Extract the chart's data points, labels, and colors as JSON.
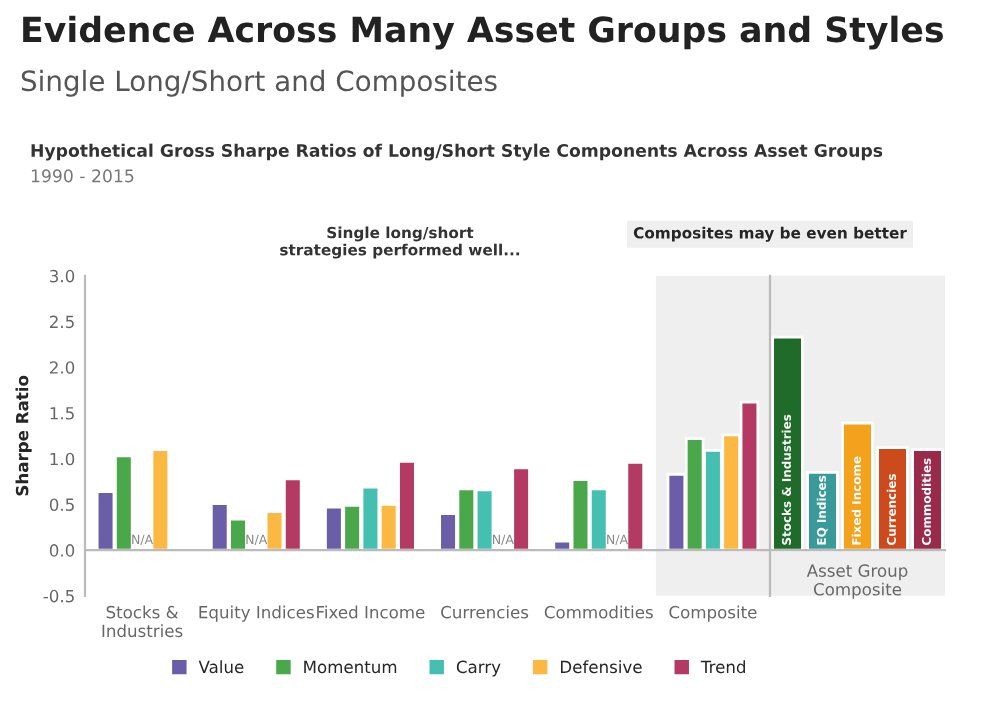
{
  "chart_data": [
    {
      "type": "bar",
      "title": "Evidence Across Many Asset Groups and Styles",
      "subtitle": "Single Long/Short and Composites",
      "ylabel": "Sharpe Ratio",
      "annotations": [
        "Hypothetical Gross Sharpe Ratios of Long/Short Style Components Across Asset Groups",
        "1990 - 2015",
        "Single long/short strategies performed well..."
      ],
      "categories": [
        "Stocks & Industries",
        "Equity Indices",
        "Fixed Income",
        "Currencies",
        "Commodities",
        "Composite"
      ],
      "series": [
        {
          "name": "Value",
          "color": "#6b5ea8",
          "values": [
            0.64,
            0.51,
            0.47,
            0.4,
            0.1,
            0.83
          ]
        },
        {
          "name": "Momentum",
          "color": "#4aa84a",
          "values": [
            1.03,
            0.34,
            0.49,
            0.67,
            0.77,
            1.22
          ]
        },
        {
          "name": "Carry",
          "color": "#45bfb0",
          "values": [
            null,
            null,
            0.69,
            0.66,
            0.67,
            1.09
          ],
          "value_labels": [
            "N/A",
            "N/A",
            null,
            null,
            null,
            null
          ]
        },
        {
          "name": "Defensive",
          "color": "#fbb843",
          "values": [
            1.1,
            0.42,
            0.5,
            null,
            null,
            1.26
          ],
          "value_labels": [
            null,
            null,
            null,
            "N/A",
            "N/A",
            null
          ]
        },
        {
          "name": "Trend",
          "color": "#b53a63",
          "values": [
            null,
            0.78,
            0.97,
            0.9,
            0.96,
            1.62
          ]
        }
      ],
      "ylim": [
        -0.5,
        3.0
      ],
      "yticks": [
        {
          "value": -0.5,
          "label": "-0.5"
        },
        {
          "value": 0,
          "label": "0.0"
        },
        {
          "value": 0.5,
          "label": "0.5"
        },
        {
          "value": 1,
          "label": "1.0"
        },
        {
          "value": 1.5,
          "label": "1.5"
        },
        {
          "value": 2,
          "label": "2.0"
        },
        {
          "value": 2.5,
          "label": "2.5"
        },
        {
          "value": 3,
          "label": "3.0"
        }
      ],
      "ref_lines": [
        {
          "axis": "y",
          "value": 0,
          "color": "#bbbbbb"
        }
      ],
      "legend": "bottom",
      "grid": false
    },
    {
      "type": "bar",
      "xlabel": "Asset Group Composite",
      "annotations": [
        "Composites may be even better"
      ],
      "categories": [
        "Stocks & Industries",
        "EQ Indices",
        "Fixed Income",
        "Currencies",
        "Commodities"
      ],
      "values": [
        2.33,
        0.85,
        1.39,
        1.12,
        1.1
      ],
      "colors": [
        "#1e6b2a",
        "#3a9a9a",
        "#f4a21b",
        "#cc4a1c",
        "#9a2a4a"
      ],
      "ylim": [
        -0.5,
        3.0
      ],
      "tick_labels": "x",
      "grid": false
    }
  ]
}
